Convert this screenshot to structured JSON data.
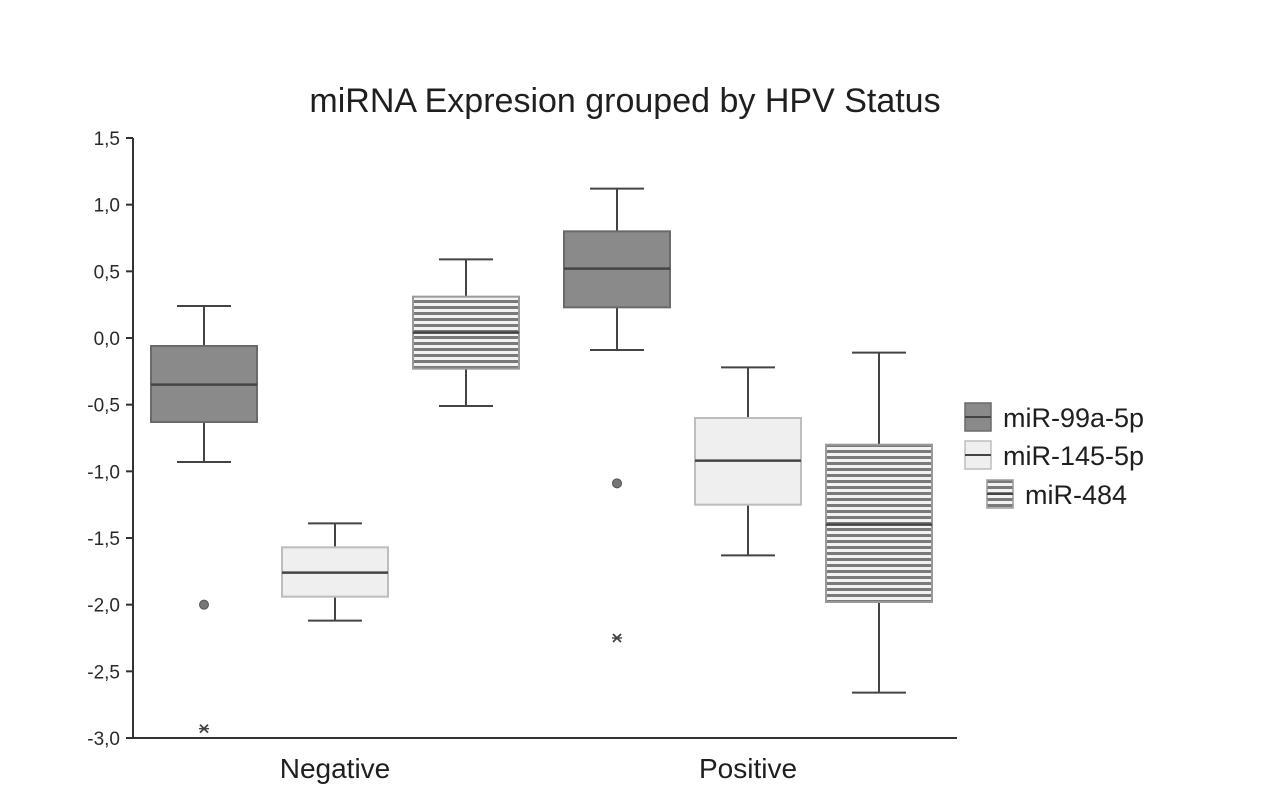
{
  "chart_data": {
    "type": "boxplot",
    "title": "miRNA Expresion grouped by HPV Status",
    "xlabel": "",
    "ylabel": "",
    "ylim": [
      -3.0,
      1.5
    ],
    "yticks": [
      1.5,
      1.0,
      0.5,
      0.0,
      -0.5,
      -1.0,
      -1.5,
      -2.0,
      -2.5,
      -3.0
    ],
    "ytick_labels": [
      "1,5",
      "1,0",
      "0,5",
      "0,0",
      "-0,5",
      "-1,0",
      "-1,5",
      "-2,0",
      "-2,5",
      "-3,0"
    ],
    "categories": [
      "Negative",
      "Positive"
    ],
    "grid": false,
    "legend_position": "right",
    "series": [
      {
        "name": "miR-99a-5p",
        "color": "#8a8a8a",
        "pattern": "solid-dark",
        "boxes": [
          {
            "category": "Negative",
            "whisker_low": -0.93,
            "q1": -0.63,
            "median": -0.35,
            "q3": -0.06,
            "whisker_high": 0.24,
            "outliers": [
              -2.0
            ],
            "extremes": [
              -2.93
            ]
          },
          {
            "category": "Positive",
            "whisker_low": -0.09,
            "q1": 0.23,
            "median": 0.52,
            "q3": 0.8,
            "whisker_high": 1.12,
            "outliers": [
              -1.09
            ],
            "extremes": [
              -2.25
            ]
          }
        ]
      },
      {
        "name": "miR-145-5p",
        "color": "#eeeeee",
        "pattern": "solid-light",
        "boxes": [
          {
            "category": "Negative",
            "whisker_low": -2.12,
            "q1": -1.94,
            "median": -1.76,
            "q3": -1.57,
            "whisker_high": -1.39,
            "outliers": [],
            "extremes": []
          },
          {
            "category": "Positive",
            "whisker_low": -1.63,
            "q1": -1.25,
            "median": -0.92,
            "q3": -0.6,
            "whisker_high": -0.22,
            "outliers": [],
            "extremes": []
          }
        ]
      },
      {
        "name": "miR-484",
        "color": "#d6d6d6",
        "pattern": "horizontal-stripes",
        "boxes": [
          {
            "category": "Negative",
            "whisker_low": -0.51,
            "q1": -0.23,
            "median": 0.04,
            "q3": 0.31,
            "whisker_high": 0.59,
            "outliers": [],
            "extremes": []
          },
          {
            "category": "Positive",
            "whisker_low": -2.66,
            "q1": -1.98,
            "median": -1.4,
            "q3": -0.8,
            "whisker_high": -0.11,
            "outliers": [],
            "extremes": []
          }
        ]
      }
    ]
  }
}
